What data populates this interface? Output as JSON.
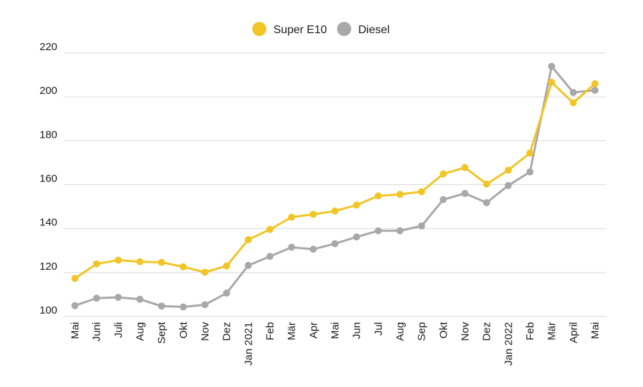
{
  "colors": {
    "super_e10": "#F2C526",
    "diesel": "#A8A8A8",
    "grid": "#d9d9d9",
    "text": "#1a1a1a"
  },
  "legend": {
    "position": "top-center"
  },
  "chart_data": {
    "type": "line",
    "title": "",
    "xlabel": "",
    "ylabel": "",
    "ylim": [
      100,
      220
    ],
    "yticks": [
      100,
      120,
      140,
      160,
      180,
      200,
      220
    ],
    "grid": "horizontal",
    "categories": [
      "Mai",
      "Juni",
      "Juli",
      "Aug",
      "Sept",
      "Okt",
      "Nov",
      "Dez",
      "Jan 2021",
      "Feb",
      "Mär",
      "Apr",
      "Mai",
      "Jun",
      "Jul",
      "Aug",
      "Sep",
      "Okt",
      "Nov",
      "Dez",
      "Jan 2022",
      "Feb",
      "Mär",
      "April",
      "Mai"
    ],
    "series": [
      {
        "name": "Super E10",
        "color": "#F2C526",
        "values": [
          117.3,
          123.9,
          125.6,
          124.9,
          124.6,
          122.6,
          120.1,
          123.0,
          134.9,
          139.6,
          145.2,
          146.5,
          148.0,
          150.7,
          154.9,
          155.6,
          156.8,
          164.9,
          167.8,
          160.3,
          166.6,
          174.4,
          206.6,
          197.3,
          206.0
        ]
      },
      {
        "name": "Diesel",
        "color": "#A8A8A8",
        "values": [
          104.9,
          108.3,
          108.7,
          107.8,
          104.7,
          104.3,
          105.3,
          110.6,
          123.2,
          127.3,
          131.5,
          130.6,
          133.1,
          136.2,
          139.0,
          139.0,
          141.2,
          153.2,
          156.0,
          151.8,
          159.6,
          165.8,
          213.9,
          202.0,
          203.0
        ]
      }
    ]
  }
}
